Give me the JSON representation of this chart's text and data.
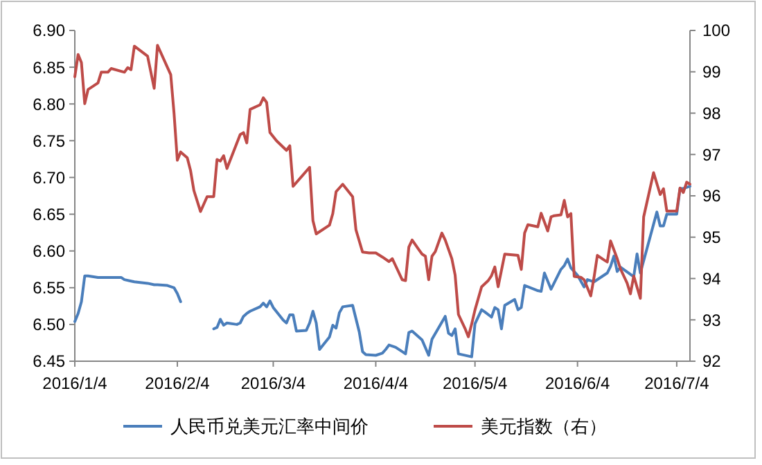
{
  "chart_data": {
    "type": "line",
    "legend": "bottom",
    "xlim": [
      "2016-01-04",
      "2016-07-08"
    ],
    "xticks": [
      {
        "value": "2016-01-04",
        "label": "2016/1/4"
      },
      {
        "value": "2016-02-04",
        "label": "2016/2/4"
      },
      {
        "value": "2016-03-04",
        "label": "2016/3/4"
      },
      {
        "value": "2016-04-04",
        "label": "2016/4/4"
      },
      {
        "value": "2016-05-04",
        "label": "2016/5/4"
      },
      {
        "value": "2016-06-04",
        "label": "2016/6/4"
      },
      {
        "value": "2016-07-04",
        "label": "2016/7/4"
      }
    ],
    "ylim": [
      6.45,
      6.9
    ],
    "yticks": [
      {
        "value": 6.45,
        "label": "6.45"
      },
      {
        "value": 6.5,
        "label": "6.50"
      },
      {
        "value": 6.55,
        "label": "6.55"
      },
      {
        "value": 6.6,
        "label": "6.60"
      },
      {
        "value": 6.65,
        "label": "6.65"
      },
      {
        "value": 6.7,
        "label": "6.70"
      },
      {
        "value": 6.75,
        "label": "6.75"
      },
      {
        "value": 6.8,
        "label": "6.80"
      },
      {
        "value": 6.85,
        "label": "6.85"
      },
      {
        "value": 6.9,
        "label": "6.90"
      }
    ],
    "y2lim": [
      92,
      100
    ],
    "y2ticks": [
      92,
      93,
      94,
      95,
      96,
      97,
      98,
      99,
      100
    ],
    "series": [
      {
        "name": "人民币兑美元汇率中间价",
        "color": "#4a7ebb",
        "x": [
          "2016-01-04",
          "2016-01-05",
          "2016-01-06",
          "2016-01-07",
          "2016-01-08",
          "2016-01-11",
          "2016-01-15",
          "2016-01-18",
          "2016-01-19",
          "2016-01-21",
          "2016-01-22",
          "2016-01-26",
          "2016-01-28",
          "2016-01-29",
          "2016-02-01",
          "2016-02-03",
          "2016-02-04",
          "2016-02-05",
          "2016-02-10",
          "2016-02-15",
          "2016-02-16",
          "2016-02-17",
          "2016-02-18",
          "2016-02-19",
          "2016-02-22",
          "2016-02-23",
          "2016-02-24",
          "2016-02-25",
          "2016-02-26",
          "2016-02-29",
          "2016-03-01",
          "2016-03-02",
          "2016-03-03",
          "2016-03-04",
          "2016-03-07",
          "2016-03-08",
          "2016-03-09",
          "2016-03-10",
          "2016-03-11",
          "2016-03-14",
          "2016-03-15",
          "2016-03-16",
          "2016-03-17",
          "2016-03-18",
          "2016-03-21",
          "2016-03-22",
          "2016-03-23",
          "2016-03-24",
          "2016-03-25",
          "2016-03-28",
          "2016-03-30",
          "2016-03-31",
          "2016-04-01",
          "2016-04-04",
          "2016-04-06",
          "2016-04-07",
          "2016-04-08",
          "2016-04-10",
          "2016-04-12",
          "2016-04-13",
          "2016-04-14",
          "2016-04-15",
          "2016-04-18",
          "2016-04-20",
          "2016-04-21",
          "2016-04-25",
          "2016-04-26",
          "2016-04-27",
          "2016-04-28",
          "2016-04-29",
          "2016-05-03",
          "2016-05-04",
          "2016-05-06",
          "2016-05-07",
          "2016-05-09",
          "2016-05-10",
          "2016-05-11",
          "2016-05-12",
          "2016-05-13",
          "2016-05-16",
          "2016-05-17",
          "2016-05-18",
          "2016-05-19",
          "2016-05-23",
          "2016-05-24",
          "2016-05-25",
          "2016-05-27",
          "2016-05-30",
          "2016-05-31",
          "2016-06-01",
          "2016-06-02",
          "2016-06-04",
          "2016-06-06",
          "2016-06-07",
          "2016-06-09",
          "2016-06-13",
          "2016-06-14",
          "2016-06-15",
          "2016-06-16",
          "2016-06-17",
          "2016-06-21",
          "2016-06-22",
          "2016-06-23",
          "2016-06-28",
          "2016-06-29",
          "2016-06-30",
          "2016-07-01",
          "2016-07-04",
          "2016-07-05",
          "2016-07-06",
          "2016-07-08"
        ],
        "values": [
          6.504,
          6.515,
          6.531,
          6.566,
          6.566,
          6.564,
          6.564,
          6.564,
          6.561,
          6.559,
          6.558,
          6.556,
          6.554,
          6.554,
          6.553,
          6.55,
          6.542,
          6.531,
          null,
          6.494,
          6.496,
          6.507,
          6.499,
          6.502,
          6.5,
          6.502,
          6.511,
          6.515,
          6.518,
          6.524,
          6.529,
          6.524,
          6.532,
          6.523,
          6.506,
          6.502,
          6.513,
          6.513,
          6.491,
          6.492,
          6.502,
          6.518,
          6.502,
          6.466,
          6.483,
          6.499,
          6.495,
          6.516,
          6.524,
          6.526,
          6.49,
          6.463,
          6.459,
          6.458,
          6.461,
          6.466,
          6.472,
          6.469,
          6.463,
          6.46,
          6.489,
          6.491,
          6.479,
          6.458,
          6.48,
          6.511,
          6.488,
          6.485,
          6.494,
          6.46,
          6.456,
          6.501,
          6.52,
          6.517,
          6.51,
          6.523,
          6.52,
          6.494,
          6.526,
          6.534,
          6.52,
          6.523,
          6.553,
          6.546,
          6.545,
          6.57,
          6.548,
          6.575,
          6.58,
          6.589,
          6.577,
          6.567,
          6.551,
          6.561,
          6.558,
          6.57,
          6.579,
          6.593,
          6.572,
          6.578,
          6.565,
          6.596,
          6.57,
          6.653,
          6.634,
          6.634,
          6.65,
          6.65,
          6.685,
          6.685,
          6.688
        ]
      },
      {
        "name": "美元指数（右）",
        "color": "#be4b48",
        "axis": "y2",
        "x": [
          "2016-01-04",
          "2016-01-05",
          "2016-01-06",
          "2016-01-07",
          "2016-01-08",
          "2016-01-11",
          "2016-01-12",
          "2016-01-14",
          "2016-01-15",
          "2016-01-19",
          "2016-01-20",
          "2016-01-21",
          "2016-01-22",
          "2016-01-26",
          "2016-01-28",
          "2016-01-29",
          "2016-02-02",
          "2016-02-03",
          "2016-02-04",
          "2016-02-05",
          "2016-02-07",
          "2016-02-08",
          "2016-02-09",
          "2016-02-11",
          "2016-02-13",
          "2016-02-15",
          "2016-02-16",
          "2016-02-17",
          "2016-02-18",
          "2016-02-19",
          "2016-02-23",
          "2016-02-24",
          "2016-02-25",
          "2016-02-26",
          "2016-02-29",
          "2016-03-01",
          "2016-03-02",
          "2016-03-03",
          "2016-03-05",
          "2016-03-08",
          "2016-03-09",
          "2016-03-10",
          "2016-03-15",
          "2016-03-16",
          "2016-03-17",
          "2016-03-21",
          "2016-03-22",
          "2016-03-23",
          "2016-03-25",
          "2016-03-28",
          "2016-03-29",
          "2016-03-31",
          "2016-04-02",
          "2016-04-04",
          "2016-04-06",
          "2016-04-08",
          "2016-04-09",
          "2016-04-10",
          "2016-04-12",
          "2016-04-13",
          "2016-04-14",
          "2016-04-15",
          "2016-04-17",
          "2016-04-18",
          "2016-04-19",
          "2016-04-20",
          "2016-04-21",
          "2016-04-22",
          "2016-04-24",
          "2016-04-25",
          "2016-04-27",
          "2016-04-28",
          "2016-04-29",
          "2016-05-01",
          "2016-05-02",
          "2016-05-03",
          "2016-05-04",
          "2016-05-06",
          "2016-05-08",
          "2016-05-09",
          "2016-05-10",
          "2016-05-11",
          "2016-05-13",
          "2016-05-17",
          "2016-05-18",
          "2016-05-19",
          "2016-05-20",
          "2016-05-23",
          "2016-05-24",
          "2016-05-26",
          "2016-05-27",
          "2016-05-28",
          "2016-05-30",
          "2016-05-31",
          "2016-06-01",
          "2016-06-02",
          "2016-06-03",
          "2016-06-05",
          "2016-06-06",
          "2016-06-08",
          "2016-06-09",
          "2016-06-10",
          "2016-06-12",
          "2016-06-13",
          "2016-06-14",
          "2016-06-16",
          "2016-06-17",
          "2016-06-19",
          "2016-06-20",
          "2016-06-21",
          "2016-06-23",
          "2016-06-24",
          "2016-06-27",
          "2016-06-29",
          "2016-06-30",
          "2016-07-01",
          "2016-07-04",
          "2016-07-05",
          "2016-07-06",
          "2016-07-07",
          "2016-07-08"
        ],
        "values": [
          98.88,
          99.42,
          99.22,
          98.23,
          98.57,
          98.73,
          98.99,
          98.99,
          99.08,
          98.99,
          99.1,
          99.05,
          99.62,
          99.38,
          98.6,
          99.64,
          98.93,
          98.0,
          96.86,
          97.06,
          96.92,
          96.61,
          96.13,
          95.62,
          95.98,
          95.98,
          96.88,
          96.84,
          96.97,
          96.66,
          97.48,
          97.53,
          97.28,
          98.09,
          98.2,
          98.37,
          98.26,
          97.53,
          97.33,
          97.1,
          97.21,
          96.23,
          96.69,
          95.4,
          95.08,
          95.29,
          95.57,
          96.1,
          96.28,
          95.98,
          95.18,
          94.64,
          94.62,
          94.62,
          94.52,
          94.41,
          94.48,
          94.31,
          93.97,
          93.95,
          94.76,
          94.93,
          94.7,
          94.59,
          94.54,
          93.97,
          94.54,
          94.65,
          95.1,
          94.93,
          94.48,
          94.08,
          93.13,
          92.79,
          92.59,
          92.9,
          93.24,
          93.8,
          93.95,
          94.07,
          94.28,
          93.8,
          94.59,
          94.56,
          94.22,
          95.1,
          95.3,
          95.25,
          95.58,
          95.15,
          95.49,
          95.52,
          95.54,
          95.89,
          95.49,
          95.57,
          94.05,
          94.03,
          93.97,
          93.58,
          94.03,
          94.56,
          94.45,
          94.4,
          94.91,
          94.48,
          94.23,
          93.89,
          93.63,
          94.06,
          93.52,
          95.49,
          96.56,
          96.03,
          96.17,
          95.63,
          95.63,
          96.19,
          96.08,
          96.33,
          96.28
        ]
      }
    ]
  }
}
